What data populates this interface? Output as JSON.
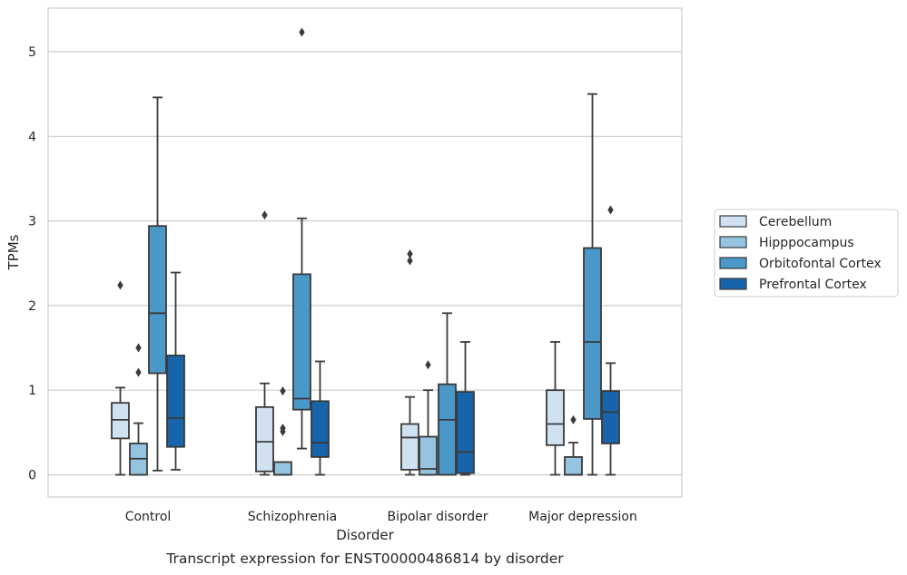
{
  "chart_data": {
    "type": "box",
    "caption": "Transcript expression for ENST00000486814 by disorder",
    "xlabel": "Disorder",
    "ylabel": "TPMs",
    "ylim": [
      -0.25,
      5.5
    ],
    "yticks": [
      0,
      1,
      2,
      3,
      4,
      5
    ],
    "grid": true,
    "legend_position": "right",
    "categories": [
      "Control",
      "Schizophrenia",
      "Bipolar disorder",
      "Major depression"
    ],
    "series": [
      {
        "name": "Cerebellum",
        "color": "#d0e1f2",
        "boxes": [
          {
            "whislo": 0.0,
            "q1": 0.43,
            "med": 0.65,
            "q3": 0.85,
            "whishi": 1.03,
            "fliers": [
              2.24
            ]
          },
          {
            "whislo": 0.0,
            "q1": 0.04,
            "med": 0.39,
            "q3": 0.8,
            "whishi": 1.08,
            "fliers": [
              3.07
            ]
          },
          {
            "whislo": 0.0,
            "q1": 0.06,
            "med": 0.44,
            "q3": 0.6,
            "whishi": 0.92,
            "fliers": [
              2.53,
              2.61
            ]
          },
          {
            "whislo": 0.0,
            "q1": 0.35,
            "med": 0.6,
            "q3": 1.0,
            "whishi": 1.57,
            "fliers": []
          }
        ]
      },
      {
        "name": "Hipppocampus",
        "color": "#94c4df",
        "boxes": [
          {
            "whislo": 0.0,
            "q1": 0.0,
            "med": 0.19,
            "q3": 0.37,
            "whishi": 0.61,
            "fliers": [
              1.21,
              1.5
            ]
          },
          {
            "whislo": 0.0,
            "q1": 0.0,
            "med": 0.0,
            "q3": 0.15,
            "whishi": 0.15,
            "fliers": [
              0.51,
              0.55,
              0.99
            ]
          },
          {
            "whislo": 0.0,
            "q1": 0.0,
            "med": 0.07,
            "q3": 0.45,
            "whishi": 1.0,
            "fliers": [
              1.3
            ]
          },
          {
            "whislo": 0.0,
            "q1": 0.0,
            "med": 0.0,
            "q3": 0.21,
            "whishi": 0.38,
            "fliers": [
              0.65
            ]
          }
        ]
      },
      {
        "name": "Orbitofontal Cortex",
        "color": "#4a98c9",
        "boxes": [
          {
            "whislo": 0.05,
            "q1": 1.2,
            "med": 1.91,
            "q3": 2.94,
            "whishi": 4.46,
            "fliers": []
          },
          {
            "whislo": 0.31,
            "q1": 0.77,
            "med": 0.9,
            "q3": 2.37,
            "whishi": 3.03,
            "fliers": [
              5.23
            ]
          },
          {
            "whislo": 0.0,
            "q1": 0.0,
            "med": 0.65,
            "q3": 1.07,
            "whishi": 1.91,
            "fliers": []
          },
          {
            "whislo": 0.0,
            "q1": 0.66,
            "med": 1.57,
            "q3": 2.68,
            "whishi": 4.5,
            "fliers": []
          }
        ]
      },
      {
        "name": "Prefrontal Cortex",
        "color": "#1764ab",
        "boxes": [
          {
            "whislo": 0.06,
            "q1": 0.33,
            "med": 0.67,
            "q3": 1.41,
            "whishi": 2.39,
            "fliers": []
          },
          {
            "whislo": 0.0,
            "q1": 0.21,
            "med": 0.38,
            "q3": 0.87,
            "whishi": 1.34,
            "fliers": []
          },
          {
            "whislo": 0.0,
            "q1": 0.02,
            "med": 0.27,
            "q3": 0.98,
            "whishi": 1.57,
            "fliers": []
          },
          {
            "whislo": 0.0,
            "q1": 0.37,
            "med": 0.74,
            "q3": 0.99,
            "whishi": 1.32,
            "fliers": [
              3.13
            ]
          }
        ]
      }
    ]
  }
}
